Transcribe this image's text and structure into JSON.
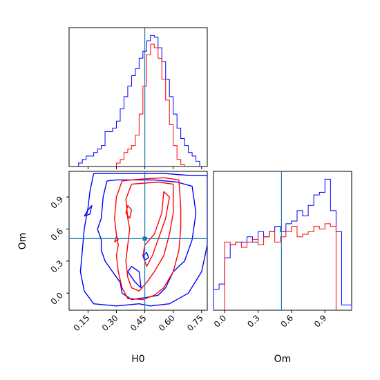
{
  "chart_data": [
    {
      "type": "histogram",
      "panel": "marginal-h0",
      "xlim": [
        0.05,
        0.78
      ],
      "truth": 0.45,
      "series": [
        {
          "color": "#0000ff",
          "bin_edges": [
            0.1,
            0.12,
            0.14,
            0.16,
            0.18,
            0.2,
            0.22,
            0.24,
            0.26,
            0.28,
            0.3,
            0.32,
            0.34,
            0.36,
            0.38,
            0.4,
            0.42,
            0.44,
            0.46,
            0.48,
            0.5,
            0.52,
            0.54,
            0.56,
            0.58,
            0.6,
            0.62,
            0.64,
            0.66,
            0.68,
            0.7,
            0.72,
            0.74
          ],
          "heights": [
            2,
            4,
            6,
            6,
            8,
            10,
            12,
            20,
            20,
            22,
            26,
            33,
            40,
            46,
            52,
            56,
            62,
            66,
            72,
            75,
            74,
            68,
            60,
            50,
            40,
            30,
            22,
            16,
            12,
            8,
            6,
            3
          ]
        },
        {
          "color": "#ff0000",
          "bin_edges": [
            0.3,
            0.32,
            0.34,
            0.36,
            0.38,
            0.4,
            0.42,
            0.44,
            0.46,
            0.48,
            0.5,
            0.52,
            0.54,
            0.56,
            0.58,
            0.6,
            0.62,
            0.64,
            0.66
          ],
          "heights": [
            2,
            4,
            8,
            10,
            12,
            18,
            30,
            46,
            64,
            70,
            68,
            62,
            50,
            38,
            24,
            12,
            4,
            1
          ]
        }
      ]
    },
    {
      "type": "contour",
      "panel": "joint-h0-om",
      "xlabel": "H0",
      "ylabel": "Om",
      "xlim": [
        0.05,
        0.78
      ],
      "ylim": [
        -0.16,
        1.14
      ],
      "x_ticks": [
        "0.15",
        "0.30",
        "0.45",
        "0.60",
        "0.75"
      ],
      "x_tick_values": [
        0.15,
        0.3,
        0.45,
        0.6,
        0.75
      ],
      "y_ticks": [
        "0.0",
        "0.3",
        "0.6",
        "0.9"
      ],
      "y_tick_values": [
        0.0,
        0.3,
        0.6,
        0.9
      ],
      "truth": {
        "x": 0.45,
        "y": 0.51
      },
      "contours": [
        {
          "color": "#0000ff",
          "points": [
            [
              0.18,
              1.12
            ],
            [
              0.16,
              0.95
            ],
            [
              0.15,
              0.8
            ],
            [
              0.13,
              0.6
            ],
            [
              0.12,
              0.4
            ],
            [
              0.11,
              0.2
            ],
            [
              0.13,
              0.02
            ],
            [
              0.18,
              -0.1
            ],
            [
              0.3,
              -0.12
            ],
            [
              0.42,
              -0.1
            ],
            [
              0.48,
              -0.12
            ],
            [
              0.58,
              -0.1
            ],
            [
              0.68,
              0.0
            ],
            [
              0.75,
              0.2
            ],
            [
              0.78,
              0.45
            ],
            [
              0.78,
              0.75
            ],
            [
              0.78,
              1.1
            ],
            [
              0.7,
              1.1
            ],
            [
              0.55,
              1.12
            ],
            [
              0.4,
              1.12
            ],
            [
              0.3,
              1.12
            ],
            [
              0.18,
              1.12
            ]
          ]
        },
        {
          "color": "#0000ff",
          "points": [
            [
              0.25,
              1.05
            ],
            [
              0.23,
              0.9
            ],
            [
              0.22,
              0.7
            ],
            [
              0.2,
              0.6
            ],
            [
              0.22,
              0.5
            ],
            [
              0.22,
              0.4
            ],
            [
              0.24,
              0.3
            ],
            [
              0.28,
              0.2
            ],
            [
              0.32,
              0.1
            ],
            [
              0.33,
              0.0
            ],
            [
              0.38,
              -0.06
            ],
            [
              0.46,
              -0.04
            ],
            [
              0.52,
              -0.02
            ],
            [
              0.56,
              0.05
            ],
            [
              0.6,
              0.2
            ],
            [
              0.66,
              0.3
            ],
            [
              0.7,
              0.5
            ],
            [
              0.72,
              0.75
            ],
            [
              0.7,
              1.0
            ],
            [
              0.62,
              1.04
            ],
            [
              0.5,
              1.06
            ],
            [
              0.4,
              1.06
            ],
            [
              0.3,
              1.06
            ],
            [
              0.25,
              1.05
            ]
          ]
        },
        {
          "color": "#0000ff",
          "points": [
            [
              0.13,
              0.72
            ],
            [
              0.15,
              0.78
            ],
            [
              0.17,
              0.82
            ],
            [
              0.16,
              0.74
            ],
            [
              0.13,
              0.72
            ]
          ]
        },
        {
          "color": "#ff0000",
          "points": [
            [
              0.33,
              1.05
            ],
            [
              0.3,
              0.9
            ],
            [
              0.29,
              0.7
            ],
            [
              0.3,
              0.55
            ],
            [
              0.31,
              0.45
            ],
            [
              0.3,
              0.35
            ],
            [
              0.31,
              0.2
            ],
            [
              0.33,
              0.05
            ],
            [
              0.36,
              -0.05
            ],
            [
              0.44,
              -0.06
            ],
            [
              0.5,
              -0.02
            ],
            [
              0.55,
              0.05
            ],
            [
              0.6,
              0.2
            ],
            [
              0.63,
              0.4
            ],
            [
              0.64,
              0.6
            ],
            [
              0.64,
              0.8
            ],
            [
              0.63,
              1.06
            ],
            [
              0.55,
              1.08
            ],
            [
              0.45,
              1.07
            ],
            [
              0.38,
              1.06
            ],
            [
              0.33,
              1.05
            ]
          ]
        },
        {
          "color": "#ff0000",
          "points": [
            [
              0.38,
              1.02
            ],
            [
              0.35,
              0.88
            ],
            [
              0.36,
              0.7
            ],
            [
              0.37,
              0.6
            ],
            [
              0.36,
              0.45
            ],
            [
              0.35,
              0.3
            ],
            [
              0.36,
              0.15
            ],
            [
              0.38,
              0.05
            ],
            [
              0.42,
              0.02
            ],
            [
              0.46,
              0.1
            ],
            [
              0.5,
              0.2
            ],
            [
              0.55,
              0.35
            ],
            [
              0.58,
              0.55
            ],
            [
              0.6,
              0.75
            ],
            [
              0.6,
              1.02
            ],
            [
              0.52,
              1.04
            ],
            [
              0.45,
              1.03
            ],
            [
              0.38,
              1.02
            ]
          ]
        },
        {
          "color": "#ff0000",
          "points": [
            [
              0.45,
              0.45
            ],
            [
              0.5,
              0.55
            ],
            [
              0.54,
              0.75
            ],
            [
              0.55,
              0.95
            ],
            [
              0.58,
              0.9
            ],
            [
              0.56,
              0.7
            ],
            [
              0.52,
              0.5
            ],
            [
              0.49,
              0.35
            ],
            [
              0.46,
              0.25
            ],
            [
              0.44,
              0.35
            ],
            [
              0.45,
              0.45
            ]
          ]
        },
        {
          "color": "#ff0000",
          "points": [
            [
              0.35,
              0.75
            ],
            [
              0.37,
              0.7
            ],
            [
              0.38,
              0.78
            ],
            [
              0.36,
              0.82
            ],
            [
              0.35,
              0.75
            ]
          ]
        },
        {
          "color": "#ff0000",
          "points": [
            [
              0.29,
              0.48
            ],
            [
              0.31,
              0.5
            ],
            [
              0.3,
              0.53
            ],
            [
              0.29,
              0.48
            ]
          ]
        },
        {
          "color": "#0000ff",
          "points": [
            [
              0.36,
              0.2
            ],
            [
              0.4,
              0.1
            ],
            [
              0.43,
              0.05
            ],
            [
              0.42,
              0.2
            ],
            [
              0.38,
              0.25
            ],
            [
              0.36,
              0.2
            ]
          ]
        },
        {
          "color": "#0000ff",
          "points": [
            [
              0.44,
              0.35
            ],
            [
              0.46,
              0.38
            ],
            [
              0.47,
              0.33
            ],
            [
              0.45,
              0.31
            ],
            [
              0.44,
              0.35
            ]
          ]
        }
      ]
    },
    {
      "type": "histogram",
      "panel": "marginal-om",
      "xlabel": "Om",
      "xlim": [
        -0.1,
        1.14
      ],
      "x_ticks": [
        "0.0",
        "0.3",
        "0.6",
        "0.9"
      ],
      "x_tick_values": [
        0.0,
        0.3,
        0.6,
        0.9
      ],
      "truth": 0.51,
      "series": [
        {
          "color": "#0000ff",
          "bin_edges": [
            -0.1,
            -0.05,
            0.0,
            0.05,
            0.1,
            0.15,
            0.2,
            0.25,
            0.3,
            0.35,
            0.4,
            0.45,
            0.5,
            0.55,
            0.6,
            0.65,
            0.7,
            0.75,
            0.8,
            0.85,
            0.9,
            0.95,
            1.0,
            1.05,
            1.1,
            1.14
          ],
          "heights": [
            8,
            10,
            20,
            25,
            26,
            26,
            28,
            26,
            30,
            28,
            30,
            32,
            30,
            33,
            34,
            38,
            36,
            40,
            44,
            45,
            50,
            38,
            30,
            2,
            2
          ]
        },
        {
          "color": "#ff0000",
          "bin_edges": [
            0.0,
            0.05,
            0.1,
            0.15,
            0.2,
            0.25,
            0.3,
            0.35,
            0.4,
            0.45,
            0.5,
            0.55,
            0.6,
            0.65,
            0.7,
            0.75,
            0.8,
            0.85,
            0.9,
            0.95,
            1.0
          ],
          "heights": [
            26,
            25,
            26,
            24,
            26,
            27,
            25,
            28,
            30,
            26,
            28,
            30,
            32,
            28,
            29,
            30,
            32,
            31,
            33,
            32
          ]
        }
      ]
    }
  ]
}
